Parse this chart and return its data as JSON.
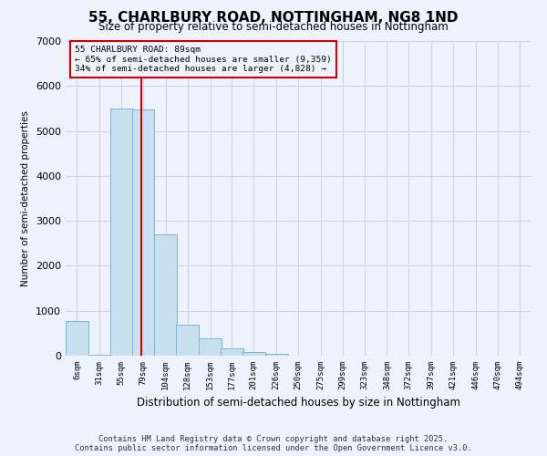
{
  "title": "55, CHARLBURY ROAD, NOTTINGHAM, NG8 1ND",
  "subtitle": "Size of property relative to semi-detached houses in Nottingham",
  "xlabel": "Distribution of semi-detached houses by size in Nottingham",
  "ylabel": "Number of semi-detached properties",
  "property_size": 89,
  "annotation_line1": "55 CHARLBURY ROAD: 89sqm",
  "annotation_line2": "← 65% of semi-detached houses are smaller (9,359)",
  "annotation_line3": "34% of semi-detached houses are larger (4,828) →",
  "footer_line1": "Contains HM Land Registry data © Crown copyright and database right 2025.",
  "footer_line2": "Contains public sector information licensed under the Open Government Licence v3.0.",
  "bin_labels": [
    "6sqm",
    "31sqm",
    "55sqm",
    "79sqm",
    "104sqm",
    "128sqm",
    "153sqm",
    "177sqm",
    "201sqm",
    "226sqm",
    "250sqm",
    "275sqm",
    "299sqm",
    "323sqm",
    "348sqm",
    "372sqm",
    "397sqm",
    "421sqm",
    "446sqm",
    "470sqm",
    "494sqm"
  ],
  "bin_edges": [
    6,
    31,
    55,
    79,
    104,
    128,
    153,
    177,
    201,
    226,
    250,
    275,
    299,
    323,
    348,
    372,
    397,
    421,
    446,
    470,
    494
  ],
  "bar_values": [
    780,
    30,
    5500,
    5480,
    2700,
    680,
    380,
    160,
    90,
    40,
    10,
    5,
    2,
    2,
    1,
    1,
    0,
    0,
    0,
    0
  ],
  "bar_color": "#c8dff0",
  "bar_edge_color": "#7ab4d4",
  "red_line_color": "#cc0000",
  "annotation_box_color": "#cc0000",
  "grid_color": "#c8d4e8",
  "background_color": "#eef2fc",
  "ylim": [
    0,
    7000
  ],
  "yticks": [
    0,
    1000,
    2000,
    3000,
    4000,
    5000,
    6000,
    7000
  ]
}
